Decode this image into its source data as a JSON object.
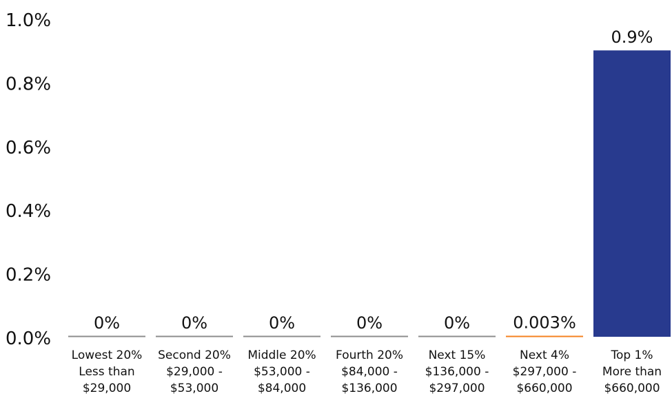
{
  "chart_data": {
    "type": "bar",
    "title": "",
    "xlabel": "",
    "ylabel": "",
    "ylim": [
      0,
      1.0
    ],
    "yticks": [
      "0.0%",
      "0.2%",
      "0.4%",
      "0.6%",
      "0.8%",
      "1.0%"
    ],
    "grid": false,
    "categories": [
      [
        "Lowest 20%",
        "Less than",
        "$29,000"
      ],
      [
        "Second 20%",
        "$29,000 -",
        "$53,000"
      ],
      [
        "Middle 20%",
        "$53,000 -",
        "$84,000"
      ],
      [
        "Fourth 20%",
        "$84,000 -",
        "$136,000"
      ],
      [
        "Next 15%",
        "$136,000 -",
        "$297,000"
      ],
      [
        "Next 4%",
        "$297,000 -",
        "$660,000"
      ],
      [
        "Top 1%",
        "More than",
        "$660,000"
      ]
    ],
    "values": [
      0,
      0,
      0,
      0,
      0,
      0.003,
      0.9
    ],
    "data_labels": [
      "0%",
      "0%",
      "0%",
      "0%",
      "0%",
      "0.003%",
      "0.9%"
    ],
    "bar_colors": [
      "#8c8c8c",
      "#8c8c8c",
      "#8c8c8c",
      "#8c8c8c",
      "#8c8c8c",
      "#f58220",
      "#283a8e"
    ]
  }
}
